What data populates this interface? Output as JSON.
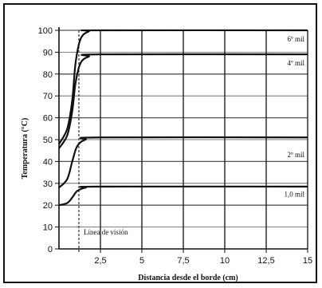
{
  "chart_data": {
    "type": "line",
    "xlabel": "Distancia desde el borde (cm)",
    "ylabel": "Temperatura (°C)",
    "xlim": [
      0,
      15
    ],
    "ylim": [
      0,
      100
    ],
    "x_ticks": [
      "2,5",
      "5",
      "7,5",
      "10",
      "12,5",
      "15"
    ],
    "y_ticks": [
      "0",
      "10",
      "20",
      "30",
      "40",
      "50",
      "60",
      "70",
      "80",
      "90",
      "100"
    ],
    "grid": true,
    "vision_line": {
      "x": 1.2,
      "label": "Línea de visión"
    },
    "series": [
      {
        "name": "6º mil",
        "label_y": 96,
        "points": [
          [
            0,
            48
          ],
          [
            0.5,
            55
          ],
          [
            0.8,
            68
          ],
          [
            1.0,
            85
          ],
          [
            1.3,
            96
          ],
          [
            1.8,
            99.5
          ],
          [
            2.5,
            100
          ],
          [
            15,
            100
          ]
        ]
      },
      {
        "name": "4º mil",
        "label_y": 85,
        "points": [
          [
            0,
            46
          ],
          [
            0.5,
            52
          ],
          [
            0.8,
            63
          ],
          [
            1.0,
            76
          ],
          [
            1.3,
            85
          ],
          [
            1.8,
            88
          ],
          [
            2.5,
            89
          ],
          [
            15,
            89
          ]
        ]
      },
      {
        "name": "2º mil",
        "label_y": 43,
        "points": [
          [
            0,
            28
          ],
          [
            0.5,
            32
          ],
          [
            0.8,
            40
          ],
          [
            1.1,
            47
          ],
          [
            1.6,
            50
          ],
          [
            2.5,
            51
          ],
          [
            15,
            51
          ]
        ]
      },
      {
        "name": "1,0 mil",
        "label_y": 25,
        "points": [
          [
            0,
            20
          ],
          [
            0.5,
            21
          ],
          [
            0.8,
            23.5
          ],
          [
            1.1,
            26.5
          ],
          [
            1.6,
            28
          ],
          [
            2.5,
            28.5
          ],
          [
            15,
            28.5
          ]
        ]
      }
    ]
  }
}
